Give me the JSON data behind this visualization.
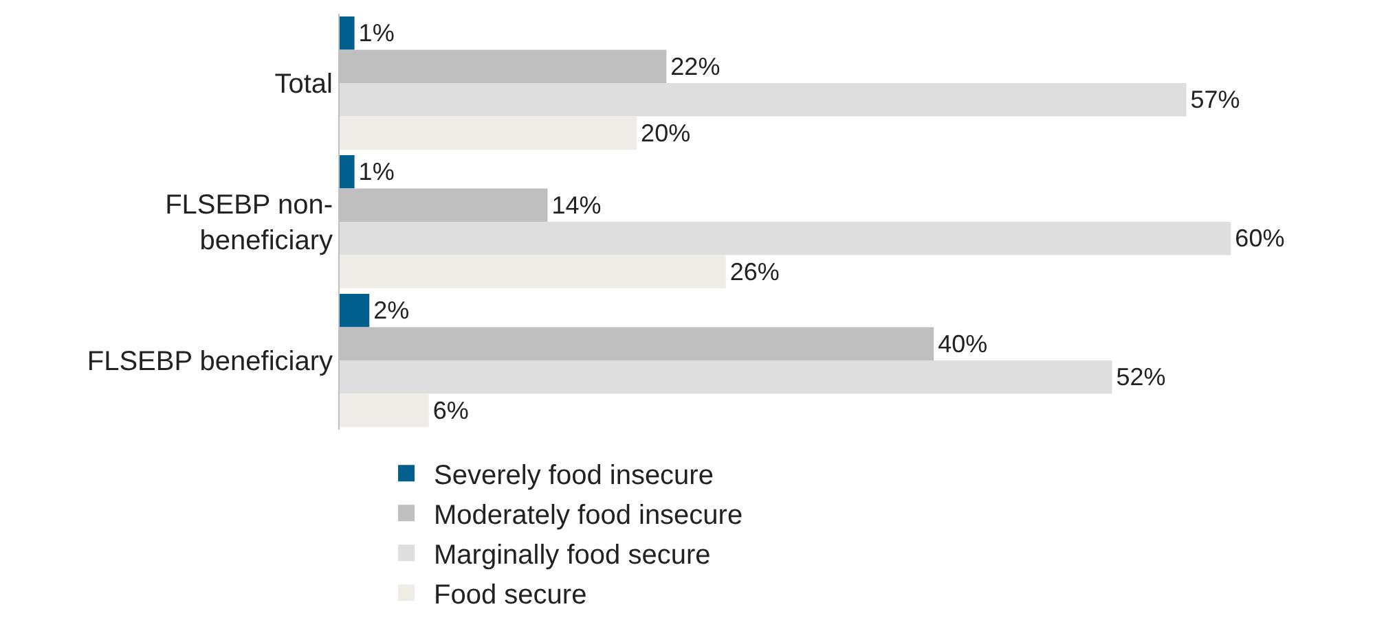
{
  "chart_data": {
    "type": "bar",
    "orientation": "horizontal",
    "categories": [
      "Total",
      "FLSEBP non-beneficiary",
      "FLSEBP beneficiary"
    ],
    "series": [
      {
        "name": "Severely food insecure",
        "color": "#005f8c",
        "values": [
          1,
          1,
          2
        ],
        "value_labels": [
          "1%",
          "1%",
          "2%"
        ]
      },
      {
        "name": "Moderately food insecure",
        "color": "#bfbfbf",
        "values": [
          22,
          14,
          40
        ],
        "value_labels": [
          "22%",
          "14%",
          "40%"
        ]
      },
      {
        "name": "Marginally food secure",
        "color": "#dedede",
        "values": [
          57,
          60,
          52
        ],
        "value_labels": [
          "57%",
          "60%",
          "52%"
        ]
      },
      {
        "name": "Food secure",
        "color": "#efebe7",
        "values": [
          20,
          26,
          6
        ],
        "value_labels": [
          "20%",
          "26%",
          "6%"
        ]
      }
    ],
    "legend": "bottom"
  }
}
